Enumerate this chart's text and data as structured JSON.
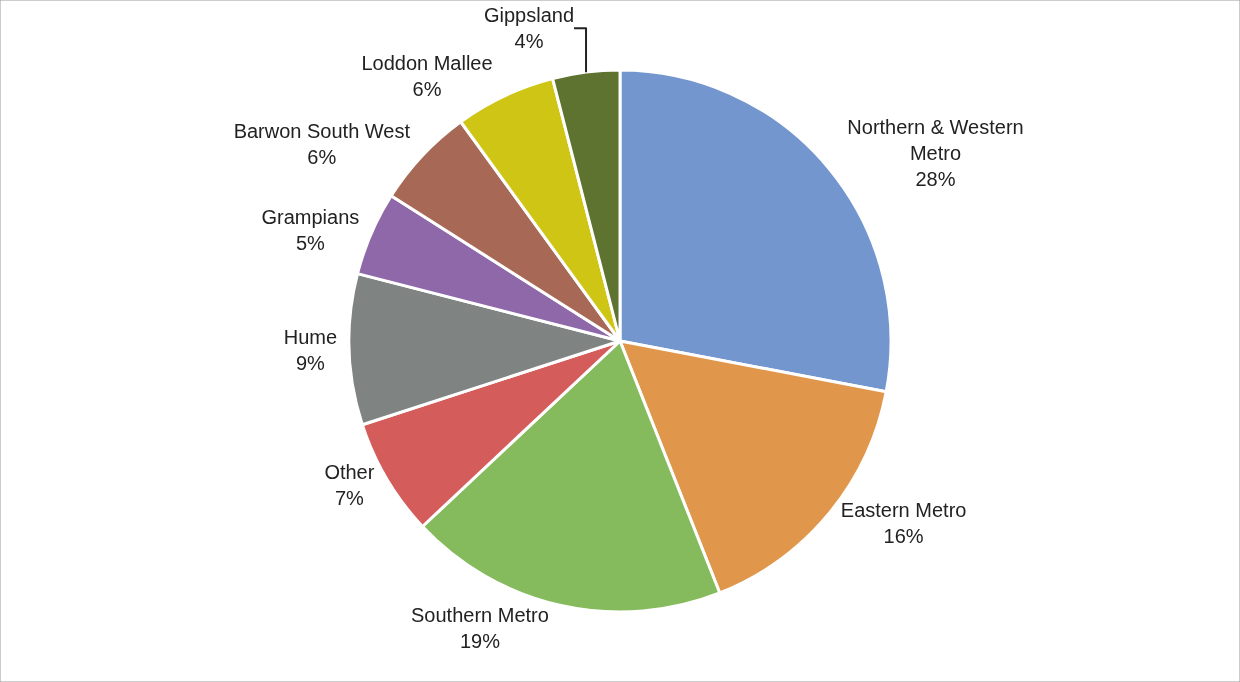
{
  "chart_data": {
    "type": "pie",
    "categories": [
      "Northern & Western Metro",
      "Eastern Metro",
      "Southern Metro",
      "Other",
      "Hume",
      "Grampians",
      "Barwon South West",
      "Loddon Mallee",
      "Gippsland"
    ],
    "values": [
      28,
      16,
      19,
      7,
      9,
      5,
      6,
      6,
      4
    ],
    "value_labels": [
      "28%",
      "16%",
      "19%",
      "7%",
      "9%",
      "5%",
      "6%",
      "6%",
      "4%"
    ],
    "colors": [
      "#7396cf",
      "#e0974c",
      "#86bb5d",
      "#d45d5c",
      "#7f8483",
      "#8e68a9",
      "#a86856",
      "#cfc515",
      "#5f7330"
    ],
    "legend": false
  }
}
